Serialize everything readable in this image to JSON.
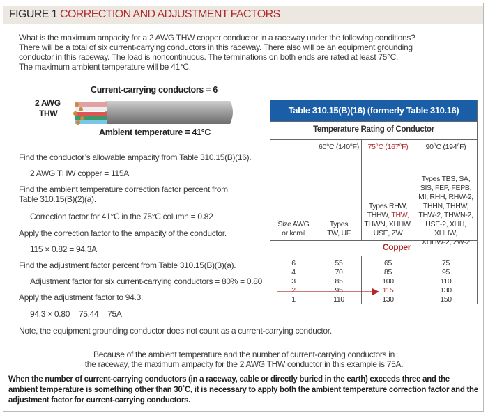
{
  "figure": {
    "label": "FIGURE 1",
    "title": "CORRECTION AND ADJUSTMENT FACTORS"
  },
  "intro": [
    "What is the maximum ampacity for a 2 AWG THW copper conductor in a raceway under the following conditions?",
    "There will be a total of six current-carrying conductors in this raceway. There also will be an equipment grounding",
    "conductor in this raceway. The load is noncontinuous. The terminations on both ends are rated at least 75°C.",
    "The maximum ambient temperature will be 41°C."
  ],
  "illustration": {
    "conductors_label": "Current-carrying conductors = 6",
    "size_label_1": "2 AWG",
    "size_label_2": "THW",
    "ambient_label": "Ambient temperature = 41°C"
  },
  "steps": {
    "s1": "Find the conductor’s allowable ampacity from Table 310.15(B)(16).",
    "s1v": "2 AWG THW copper = 115A",
    "s2a": "Find the ambient temperature correction factor percent from",
    "s2b": "Table 310.15(B)(2)(a).",
    "s2v": "Correction factor for 41°C in the 75°C column = 0.82",
    "s3": "Apply the correction factor to the ampacity of the conductor.",
    "s3v": "115 × 0.82 = 94.3A",
    "s4": "Find the adjustment factor percent from Table 310.15(B)(3)(a).",
    "s4v": "Adjustment factor for six current-carrying conductors = 80% = 0.80",
    "s5": "Apply the adjustment factor to 94.3.",
    "s5v": "94.3 × 0.80 = 75.44 = 75A",
    "note": "Note, the equipment grounding conductor does not count as a current-carrying conductor."
  },
  "conclusion": [
    "Because of the ambient temperature and the number of current-carrying conductors in",
    "the raceway, the maximum ampacity for the 2 AWG THW conductor in this example is 75A."
  ],
  "footer": [
    "When the number of current-carrying conductors (in a raceway, cable or directly buried in the earth) exceeds three and the",
    "ambient temperature is something other than 30˚C, it is necessary to apply both the ambient temperature correction factor and the",
    "adjustment factor for current-carrying conductors."
  ],
  "table": {
    "title": "Table 310.15(B)(16) (formerly Table 310.16)",
    "subtitle": "Temperature Rating of Conductor",
    "size_header": [
      "Size AWG",
      "or kcmil"
    ],
    "columns": [
      {
        "temp": "60°C (140°F)",
        "types": [
          "Types",
          "TW, UF"
        ]
      },
      {
        "temp": "75°C (167°F)",
        "types": [
          "Types RHW,",
          "THHW, ",
          "THW,",
          "THWN, XHHW,",
          "USE, ZW"
        ]
      },
      {
        "temp": "90°C (194°F)",
        "types": [
          "Types TBS, SA,",
          "SIS, FEP, FEPB,",
          "MI, RHH, RHW-2,",
          "THHN, THHW,",
          "THW-2, THWN-2,",
          "USE-2, XHH, XHHW,",
          "XHHW-2, ZW-2"
        ]
      }
    ],
    "material": "Copper",
    "rows": [
      [
        "6",
        "55",
        "65",
        "75"
      ],
      [
        "4",
        "70",
        "85",
        "95"
      ],
      [
        "3",
        "85",
        "100",
        "110"
      ],
      [
        "2",
        "95",
        "115",
        "130"
      ],
      [
        "1",
        "110",
        "130",
        "150"
      ]
    ],
    "highlight_row": "2",
    "colors": {
      "header_bg": "#1b5ea8",
      "accent": "#b22a2a"
    }
  }
}
